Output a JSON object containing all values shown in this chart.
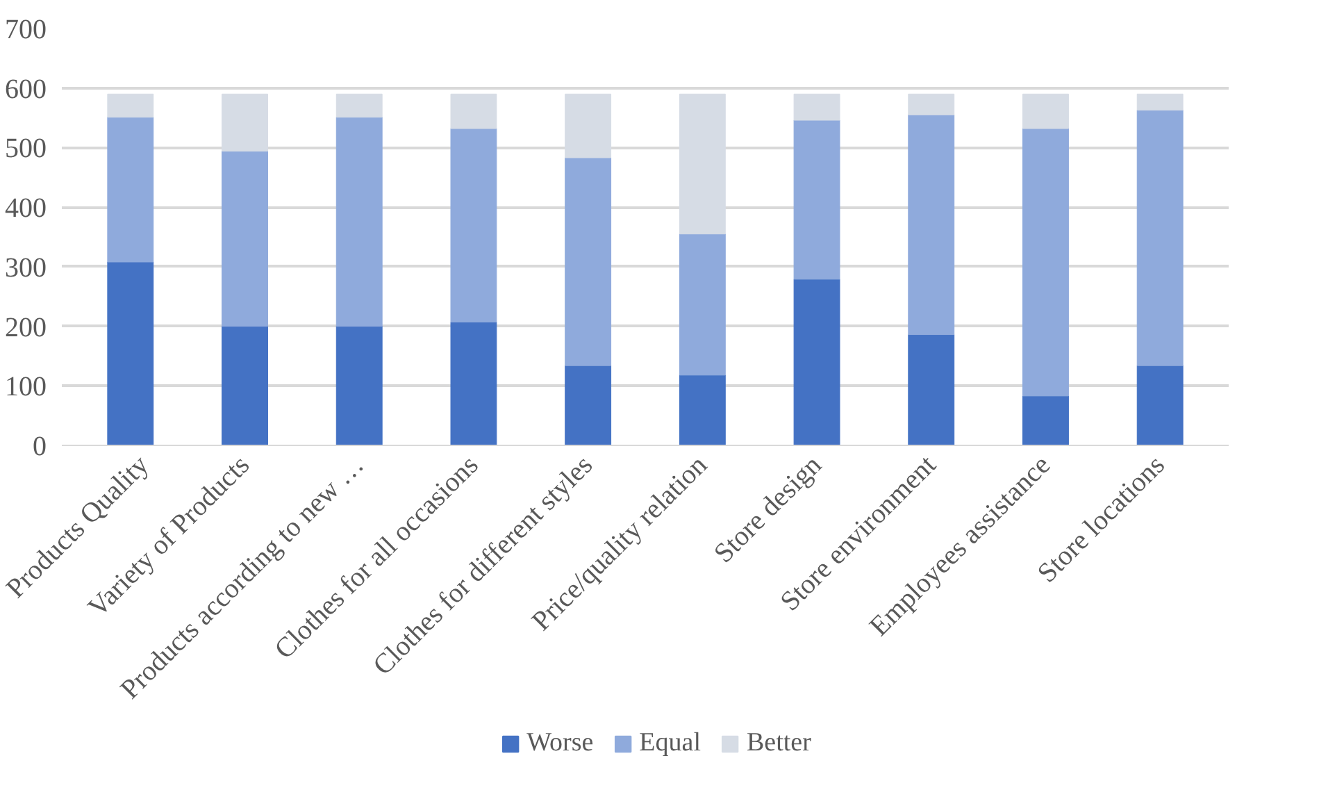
{
  "chart_data": {
    "type": "bar",
    "stacked": true,
    "categories": [
      "Products Quality",
      "Variety of Products",
      "Products according to new …",
      "Clothes for all occasions",
      "Clothes for different styles",
      "Price/quality relation",
      "Store design",
      "Store environment",
      "Employees assistance",
      "Store locations"
    ],
    "series": [
      {
        "name": "Worse",
        "color": "#4472c4",
        "values": [
          308,
          200,
          200,
          207,
          134,
          118,
          279,
          186,
          83,
          134
        ]
      },
      {
        "name": "Equal",
        "color": "#8faadc",
        "values": [
          243,
          294,
          351,
          325,
          349,
          237,
          267,
          369,
          449,
          429
        ]
      },
      {
        "name": "Better",
        "color": "#d6dce5",
        "values": [
          39,
          96,
          39,
          58,
          107,
          235,
          44,
          35,
          58,
          27
        ]
      }
    ],
    "ylim": [
      0,
      700
    ],
    "yticks": [
      0,
      100,
      200,
      300,
      400,
      500,
      600,
      700
    ],
    "grid": "y",
    "legend": "bottom"
  }
}
